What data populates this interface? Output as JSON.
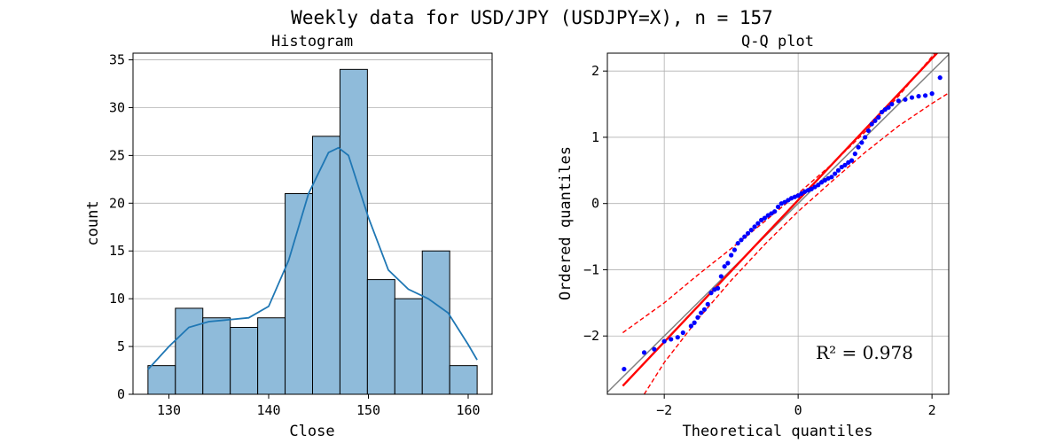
{
  "figure_title": "Weekly data for USD/JPY (USDJPY=X), n = 157",
  "colors": {
    "bar_fill": "#8fbbda",
    "bar_edge": "#000000",
    "kde": "#1f77b4",
    "points": "#0000ff",
    "fit": "#ff0000",
    "reference": "#808080",
    "grid": "#b0b0b0"
  },
  "chart_data": [
    {
      "type": "bar",
      "subtype": "histogram",
      "title": "Histogram",
      "xlabel": "Close",
      "ylabel": "count",
      "bin_edges": [
        127.9,
        130.65,
        133.4,
        136.15,
        138.9,
        141.65,
        144.4,
        147.15,
        149.9,
        152.65,
        155.4,
        158.15,
        160.9
      ],
      "values": [
        3,
        9,
        8,
        7,
        8,
        21,
        27,
        34,
        12,
        10,
        15,
        3
      ],
      "xlim": [
        126.4,
        162.4
      ],
      "ylim": [
        0,
        35.7
      ],
      "xticks": [
        130,
        140,
        150,
        160
      ],
      "yticks": [
        0,
        5,
        10,
        15,
        20,
        25,
        30,
        35
      ],
      "kde": {
        "x": [
          127.9,
          130,
          132,
          134,
          136,
          138,
          140,
          142,
          144,
          146,
          147,
          148,
          150,
          152,
          154,
          156,
          158,
          160,
          160.9
        ],
        "y": [
          2.6,
          5.0,
          7.0,
          7.6,
          7.8,
          8.0,
          9.2,
          14.0,
          21.0,
          25.3,
          25.8,
          25.0,
          18.5,
          13.0,
          11.0,
          10.0,
          8.5,
          5.2,
          3.6
        ]
      },
      "grid": true
    },
    {
      "type": "scatter",
      "subtype": "qq",
      "title": "Q-Q plot",
      "xlabel": "Theoretical quantiles",
      "ylabel": "Ordered quantiles",
      "xlim": [
        -2.85,
        2.25
      ],
      "ylim": [
        -2.88,
        2.27
      ],
      "xticks": [
        -2,
        0,
        2
      ],
      "yticks": [
        -2,
        -1,
        0,
        1,
        2
      ],
      "r2_label": "R² = 0.978",
      "fit_line": {
        "slope": 1.07,
        "intercept": 0.05,
        "x": [
          -2.62,
          2.25
        ]
      },
      "reference_line": {
        "slope": 1,
        "intercept": 0
      },
      "confidence_upper": {
        "x": [
          -2.62,
          -2,
          -1.5,
          -1,
          -0.5,
          0,
          0.5,
          1,
          1.5,
          2,
          2.1
        ],
        "y": [
          -1.95,
          -1.5,
          -1.08,
          -0.68,
          -0.27,
          0.15,
          0.59,
          1.08,
          1.62,
          2.22,
          2.35
        ]
      },
      "confidence_lower": {
        "x": [
          -2.3,
          -2,
          -1.5,
          -1,
          -0.5,
          0,
          0.5,
          1,
          1.5,
          2,
          2.25
        ],
        "y": [
          -2.88,
          -2.4,
          -1.75,
          -1.16,
          -0.62,
          -0.12,
          0.33,
          0.77,
          1.17,
          1.51,
          1.67
        ]
      },
      "points": {
        "x": [
          -2.6,
          -2.3,
          -2.15,
          -2.0,
          -1.9,
          -1.8,
          -1.72,
          -1.6,
          -1.55,
          -1.5,
          -1.45,
          -1.4,
          -1.35,
          -1.3,
          -1.25,
          -1.2,
          -1.15,
          -1.1,
          -1.05,
          -1.0,
          -0.95,
          -0.9,
          -0.85,
          -0.8,
          -0.75,
          -0.7,
          -0.65,
          -0.6,
          -0.55,
          -0.5,
          -0.45,
          -0.4,
          -0.35,
          -0.3,
          -0.25,
          -0.2,
          -0.15,
          -0.1,
          -0.05,
          0.0,
          0.05,
          0.1,
          0.15,
          0.2,
          0.25,
          0.3,
          0.35,
          0.4,
          0.45,
          0.5,
          0.55,
          0.6,
          0.65,
          0.7,
          0.75,
          0.8,
          0.85,
          0.9,
          0.95,
          1.0,
          1.05,
          1.1,
          1.15,
          1.2,
          1.25,
          1.3,
          1.35,
          1.4,
          1.5,
          1.6,
          1.7,
          1.8,
          1.9,
          2.0,
          2.12
        ],
        "y": [
          -2.5,
          -2.25,
          -2.2,
          -2.08,
          -2.05,
          -2.02,
          -1.95,
          -1.85,
          -1.8,
          -1.72,
          -1.65,
          -1.6,
          -1.52,
          -1.35,
          -1.3,
          -1.28,
          -1.1,
          -0.95,
          -0.9,
          -0.78,
          -0.7,
          -0.6,
          -0.55,
          -0.5,
          -0.45,
          -0.4,
          -0.35,
          -0.3,
          -0.25,
          -0.22,
          -0.18,
          -0.15,
          -0.12,
          -0.05,
          0.0,
          0.02,
          0.05,
          0.08,
          0.1,
          0.12,
          0.15,
          0.18,
          0.2,
          0.22,
          0.25,
          0.28,
          0.32,
          0.35,
          0.38,
          0.4,
          0.45,
          0.5,
          0.55,
          0.58,
          0.62,
          0.65,
          0.75,
          0.85,
          0.92,
          1.0,
          1.1,
          1.2,
          1.25,
          1.3,
          1.38,
          1.42,
          1.45,
          1.5,
          1.55,
          1.57,
          1.6,
          1.62,
          1.63,
          1.66,
          1.9
        ]
      }
    }
  ]
}
